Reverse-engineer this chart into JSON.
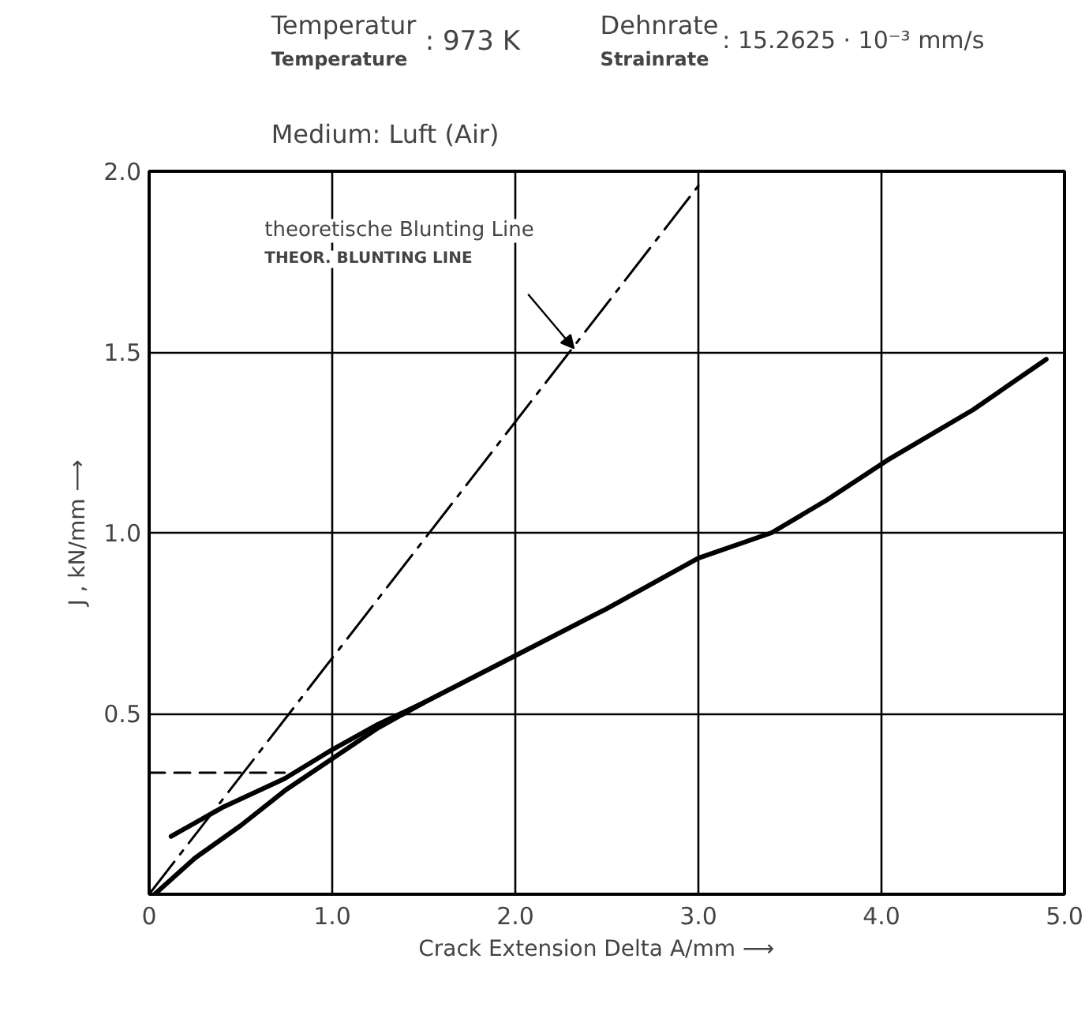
{
  "chart_data": {
    "type": "line",
    "xlabel": "Crack Extension    Delta A/mm ⟶",
    "ylabel": "J , kN/mm ⟶",
    "xlim": [
      0,
      5.0
    ],
    "ylim": [
      0,
      2.0
    ],
    "xticks": [
      0,
      {
        "value": 1,
        "label": "1.0"
      },
      {
        "value": 2,
        "label": "2.0"
      },
      {
        "value": 3,
        "label": "3.0"
      },
      {
        "value": 4,
        "label": "4.0"
      },
      {
        "value": 5,
        "label": "5.0"
      }
    ],
    "yticks": [
      0.5,
      {
        "value": 1,
        "label": "1.0"
      },
      1.5,
      {
        "value": 2,
        "label": "2.0"
      }
    ],
    "grid": true,
    "marker": "none",
    "series": [
      {
        "color": "#000000",
        "line_style": "dashdot",
        "x": [
          0,
          3.0
        ],
        "values": [
          0,
          1.96
        ]
      },
      {
        "color": "#000000",
        "line_style": "solid",
        "x": [
          0.03,
          0.25,
          0.5,
          0.75,
          1.0,
          1.25,
          1.5,
          2.0,
          2.5,
          3.0,
          3.4,
          3.7,
          4.03,
          4.5,
          4.9
        ],
        "values": [
          0,
          0.1,
          0.19,
          0.29,
          0.375,
          0.46,
          0.53,
          0.66,
          0.79,
          0.93,
          1.0,
          1.09,
          1.2,
          1.34,
          1.48
        ]
      },
      {
        "color": "#000000",
        "line_style": "solid",
        "x": [
          0.12,
          0.4,
          0.74,
          1.0,
          1.25,
          1.5
        ],
        "values": [
          0.16,
          0.24,
          0.32,
          0.4,
          0.47,
          0.53
        ]
      },
      {
        "color": "#000000",
        "line_style": "dashed",
        "x": [
          0,
          0.74
        ],
        "values": [
          0.336,
          0.336
        ]
      }
    ],
    "annotations": [
      "Temperatur",
      "Temperature",
      ": 973 K",
      "Dehnrate",
      "Strainrate",
      ": 15.2625 · 10⁻³ mm/s",
      "Medium:  Luft (Air)",
      {
        "text": "theoretische Blunting Line\nTHEOR. BLUNTING LINE",
        "x": 2.32,
        "y": 1.51
      }
    ]
  }
}
